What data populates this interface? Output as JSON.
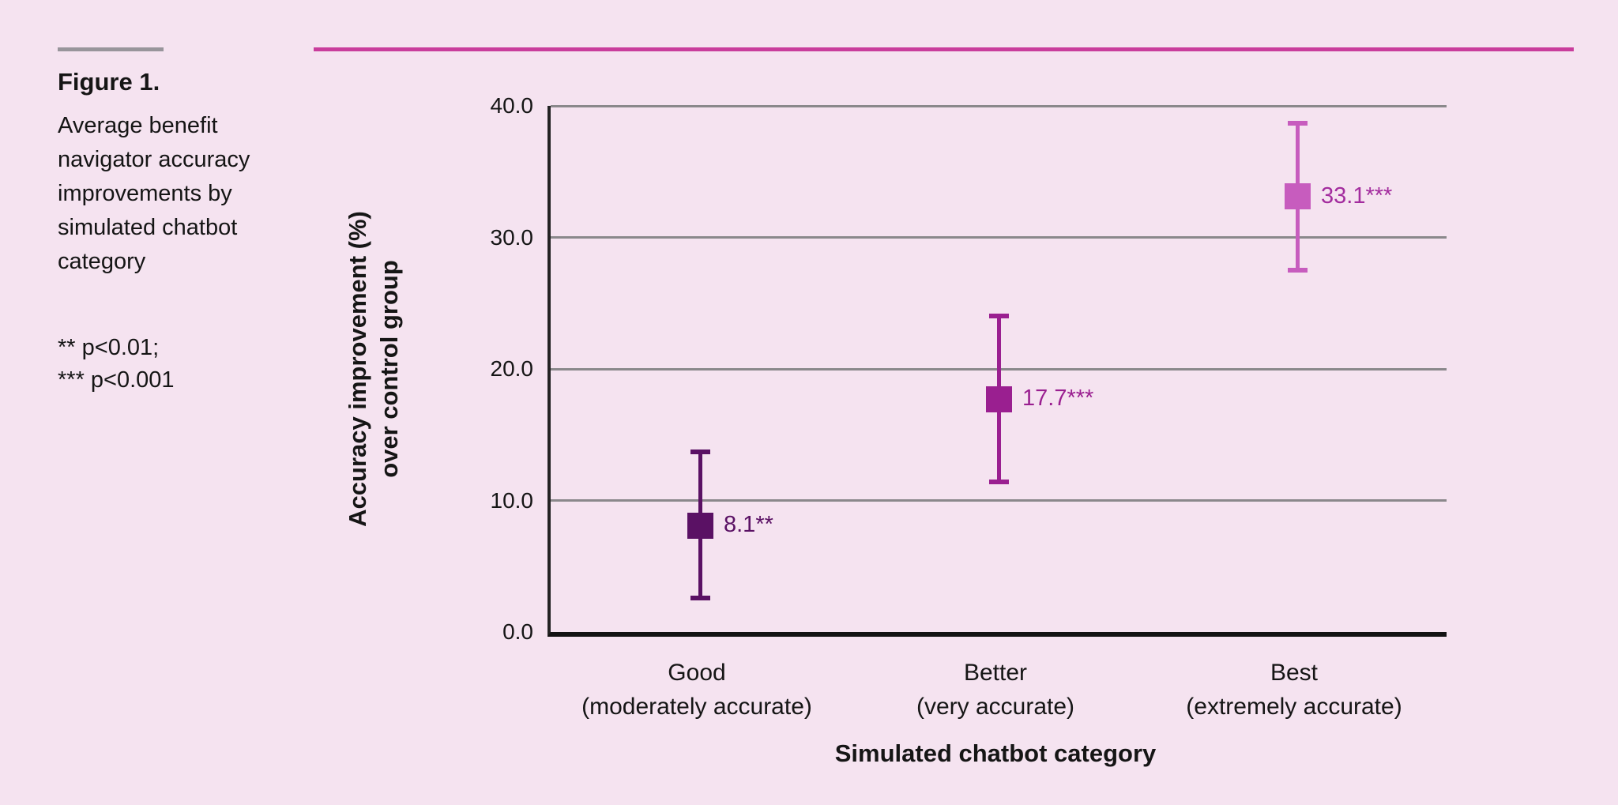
{
  "sidebar": {
    "figure_label": "Figure 1.",
    "caption": "Average benefit navigator accuracy improvements by simulated chatbot category",
    "notes": [
      "** p<0.01;",
      "*** p<0.001"
    ]
  },
  "colors": {
    "background": "#F5E3F0",
    "header_accent_rule": "#C93D9C",
    "figure_label_rule": "#98959B",
    "gridline": "#8A888B",
    "axis_line": "#1C1C1C"
  },
  "chart_data": {
    "type": "scatter",
    "subtype": "point-estimates-with-error-bars",
    "title": "Average benefit navigator accuracy improvements by simulated chatbot category",
    "xlabel": "Simulated chatbot category",
    "ylabel": "Accuracy improvement (%) over control group",
    "ylabel_lines": [
      "Accuracy improvement (%)",
      "over control group"
    ],
    "ylim": [
      0,
      40
    ],
    "yticks": [
      0,
      10,
      20,
      30,
      40
    ],
    "ytick_labels": [
      "0.0",
      "10.0",
      "20.0",
      "30.0",
      "40.0"
    ],
    "grid": true,
    "legend": "none",
    "categories": [
      {
        "line1": "Good",
        "line2": "(moderately accurate)"
      },
      {
        "line1": "Better",
        "line2": "(very accurate)"
      },
      {
        "line1": "Best",
        "line2": "(extremely accurate)"
      }
    ],
    "points": [
      {
        "category": "Good (moderately accurate)",
        "value": 8.1,
        "label": "8.1**",
        "significance": "**",
        "ci_low": 2.6,
        "ci_high": 13.7,
        "color": "#5A1164",
        "label_color": "#5A1164"
      },
      {
        "category": "Better (very accurate)",
        "value": 17.7,
        "label": "17.7***",
        "significance": "***",
        "ci_low": 11.4,
        "ci_high": 24.0,
        "color": "#9A1F90",
        "label_color": "#9A1F90"
      },
      {
        "category": "Best (extremely accurate)",
        "value": 33.1,
        "label": "33.1***",
        "significance": "***",
        "ci_low": 27.5,
        "ci_high": 38.7,
        "color": "#C75CBE",
        "label_color": "#A32C9E"
      }
    ]
  }
}
